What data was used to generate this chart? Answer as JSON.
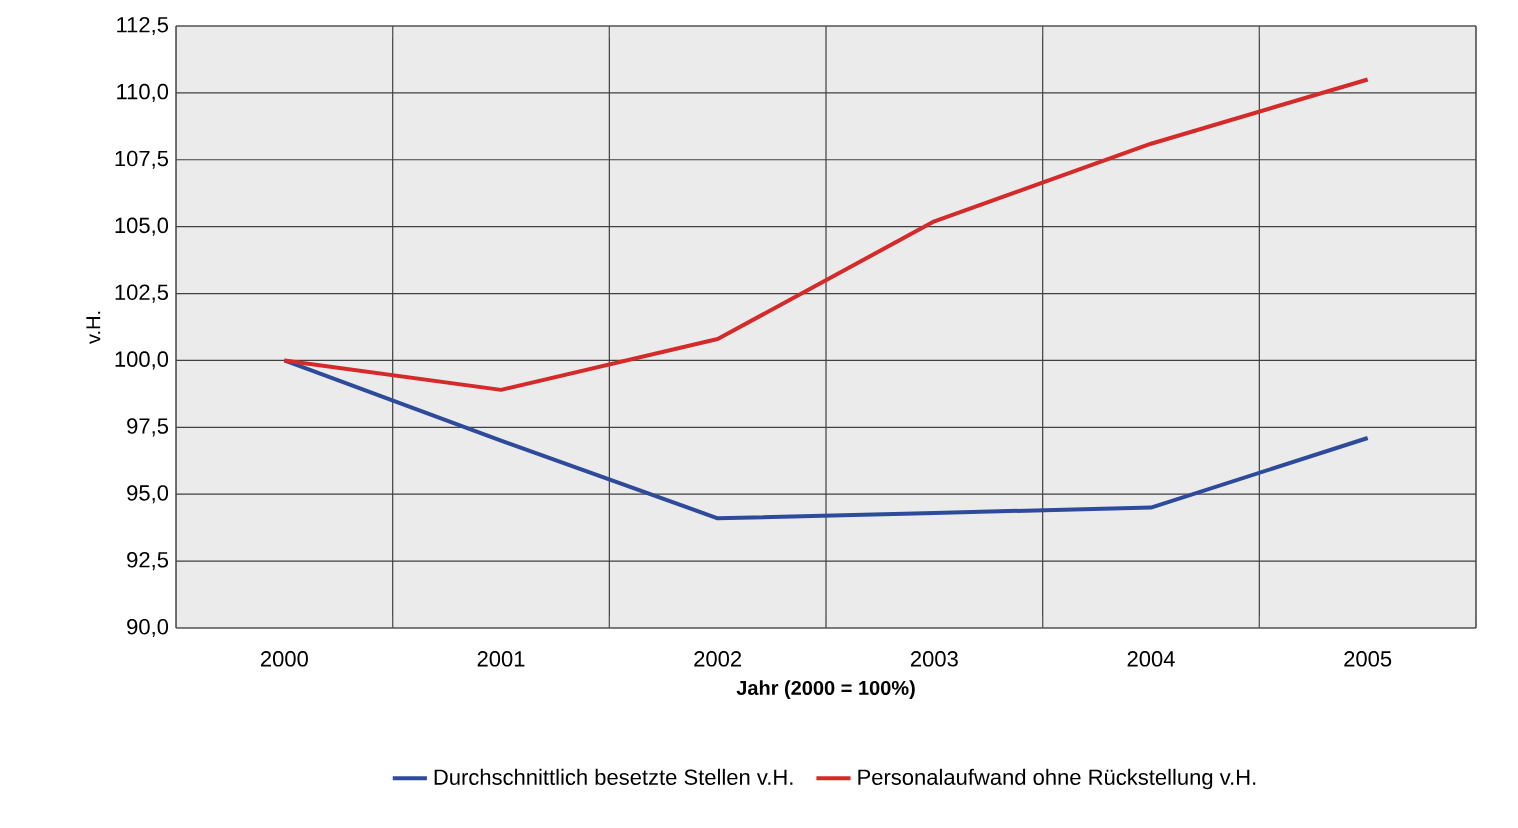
{
  "chart_data": {
    "type": "line",
    "xlabel": "Jahr (2000 = 100%)",
    "ylabel": "v.H.",
    "categories": [
      "2000",
      "2001",
      "2002",
      "2003",
      "2004",
      "2005"
    ],
    "series": [
      {
        "name": "Durchschnittlich besetzte Stellen v.H.",
        "color": "#2e4b9b",
        "values": [
          100.0,
          97.0,
          94.1,
          94.3,
          94.5,
          97.1
        ]
      },
      {
        "name": "Personalaufwand ohne Rückstellung v.H.",
        "color": "#d42a2a",
        "values": [
          100.0,
          98.9,
          100.8,
          105.2,
          108.1,
          110.5
        ]
      }
    ],
    "ylim": [
      90,
      112.5
    ],
    "yticks": [
      {
        "value": 90,
        "label": "90,0"
      },
      {
        "value": 92.5,
        "label": "92,5"
      },
      {
        "value": 95,
        "label": "95,0"
      },
      {
        "value": 97.5,
        "label": "97,5"
      },
      {
        "value": 100,
        "label": "100,0"
      },
      {
        "value": 102.5,
        "label": "102,5"
      },
      {
        "value": 105,
        "label": "105,0"
      },
      {
        "value": 107.5,
        "label": "107,5"
      },
      {
        "value": 110,
        "label": "110,0"
      },
      {
        "value": 112.5,
        "label": "112,5"
      }
    ],
    "grid": true,
    "legend": "bottom",
    "marker": "none",
    "line_style": "solid"
  }
}
